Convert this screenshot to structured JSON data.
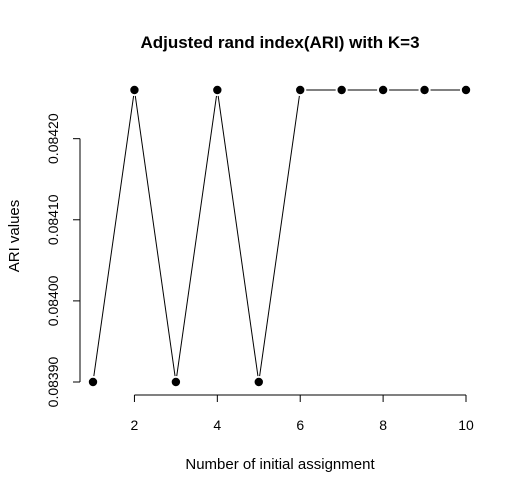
{
  "chart_data": {
    "type": "line",
    "title": "Adjusted rand index(ARI) with K=3",
    "xlabel": "Number of initial assignment",
    "ylabel": "ARI values",
    "x": [
      1,
      2,
      3,
      4,
      5,
      6,
      7,
      8,
      9,
      10
    ],
    "series": [
      {
        "values": [
          0.0839,
          0.08426,
          0.0839,
          0.08426,
          0.0839,
          0.08426,
          0.08426,
          0.08426,
          0.08426,
          0.08426
        ]
      }
    ],
    "xlim": [
      1,
      10
    ],
    "ylim": [
      0.0839,
      0.08426
    ],
    "x_ticks": [
      2,
      4,
      6,
      8,
      10
    ],
    "y_ticks": [
      0.0839,
      0.084,
      0.0841,
      0.0842
    ],
    "x_tick_labels": [
      "2",
      "4",
      "6",
      "8",
      "10"
    ],
    "y_tick_labels": [
      "0.08390",
      "0.08400",
      "0.08410",
      "0.08420"
    ],
    "grid": false,
    "legend": "none",
    "line_style": "b",
    "colors": {
      "line": "#000000",
      "points": "#000000"
    }
  }
}
